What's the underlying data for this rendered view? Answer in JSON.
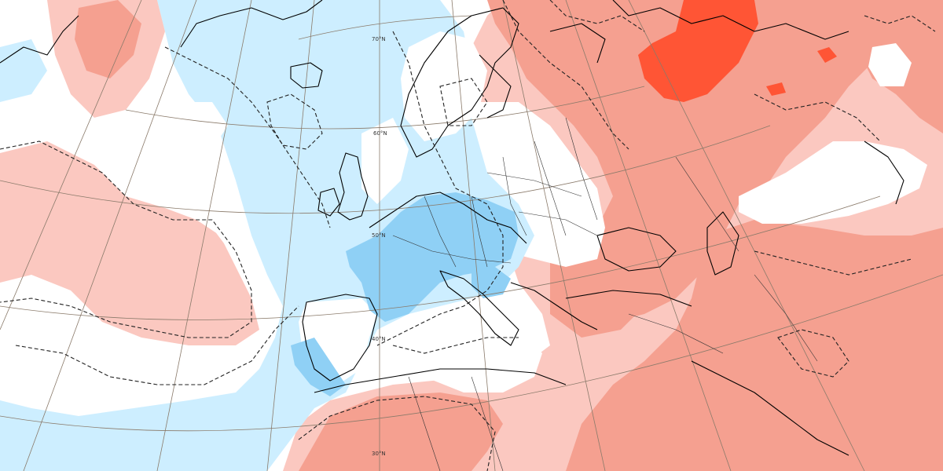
{
  "colors": {
    "cool_light": "#cdeeff",
    "cool_medium": "#8fd0f5",
    "warm_light": "#fbc8c0",
    "warm_medium": "#f5a090",
    "warm_strong": "#ff5535",
    "land_white": "#ffffff",
    "coastline": "#000000",
    "graticule": "#8a7a6a",
    "anomaly_contour": "#222222"
  },
  "map": {
    "projection": "polar stereographic",
    "latitude_labels": [
      "70°N",
      "60°N",
      "50°N",
      "40°N",
      "30°N"
    ]
  }
}
